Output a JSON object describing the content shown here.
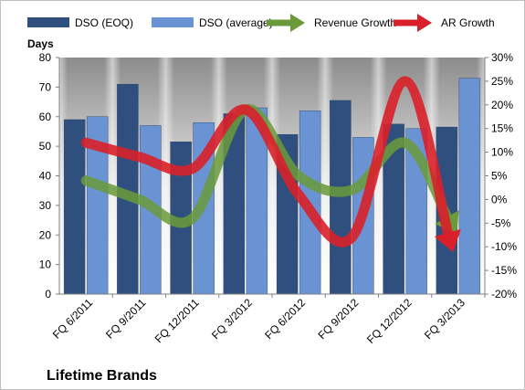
{
  "chart_data": {
    "type": "bar",
    "caption": "Lifetime Brands",
    "ylabel_left": "Days",
    "categories": [
      "FQ 6/2011",
      "FQ 9/2011",
      "FQ 12/2011",
      "FQ 3/2012",
      "FQ 6/2012",
      "FQ 9/2012",
      "FQ 12/2012",
      "FQ 3/2013"
    ],
    "left_ticks": [
      "0",
      "10",
      "20",
      "30",
      "40",
      "50",
      "60",
      "70",
      "80"
    ],
    "right_ticks": [
      "-20%",
      "-15%",
      "-10%",
      "-5%",
      "0%",
      "5%",
      "10%",
      "15%",
      "20%",
      "25%",
      "30%"
    ],
    "ylim_left": [
      0,
      80
    ],
    "ylim_right": [
      -20,
      30
    ],
    "grid": false,
    "legend_position": "top",
    "series": [
      {
        "name": "DSO (EOQ)",
        "kind": "bar",
        "axis": "left",
        "color": "#2f4f7f",
        "values": [
          59,
          71,
          51.5,
          61,
          54,
          65.5,
          57.5,
          56.5
        ]
      },
      {
        "name": "DSO (average)",
        "kind": "bar",
        "axis": "left",
        "color": "#6a93d4",
        "values": [
          60,
          57,
          58,
          63,
          62,
          53,
          56,
          73
        ]
      },
      {
        "name": "Revenue Growth",
        "kind": "line-arrow",
        "axis": "right",
        "color": "#6a9a3a",
        "values": [
          4,
          0,
          -4,
          19,
          5,
          2,
          12,
          -8
        ]
      },
      {
        "name": "AR Growth",
        "kind": "line-arrow",
        "axis": "right",
        "color": "#d9202a",
        "values": [
          12,
          9,
          6.5,
          19,
          1,
          -8,
          25,
          -15
        ]
      }
    ]
  }
}
